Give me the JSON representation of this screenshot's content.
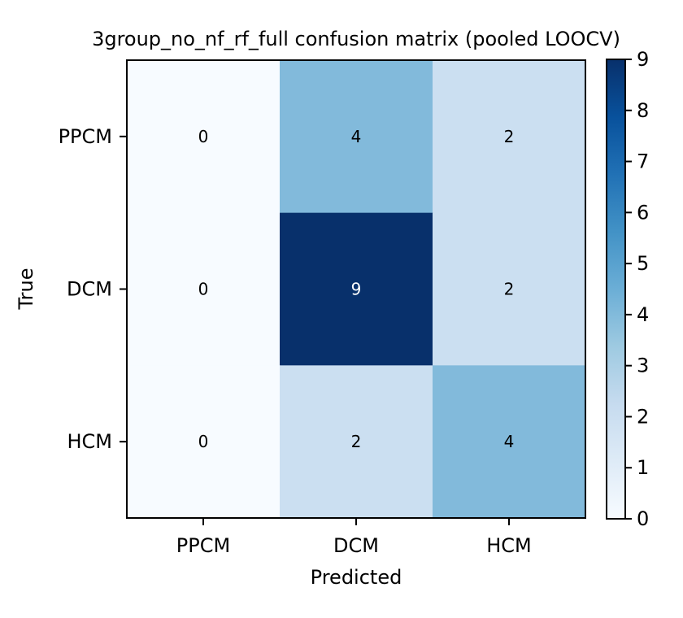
{
  "chart_data": {
    "type": "heatmap",
    "title": "3group_no_nf_rf_full confusion matrix (pooled LOOCV)",
    "xlabel": "Predicted",
    "ylabel": "True",
    "x_categories": [
      "PPCM",
      "DCM",
      "HCM"
    ],
    "y_categories": [
      "PPCM",
      "DCM",
      "HCM"
    ],
    "values": [
      [
        0,
        4,
        2
      ],
      [
        0,
        9,
        2
      ],
      [
        0,
        2,
        4
      ]
    ],
    "colorscale": "Blues",
    "color_range": [
      0,
      9
    ],
    "colorbar_ticks": [
      0,
      1,
      2,
      3,
      4,
      5,
      6,
      7,
      8,
      9
    ],
    "cell_labels_shown": true,
    "grid": false
  }
}
